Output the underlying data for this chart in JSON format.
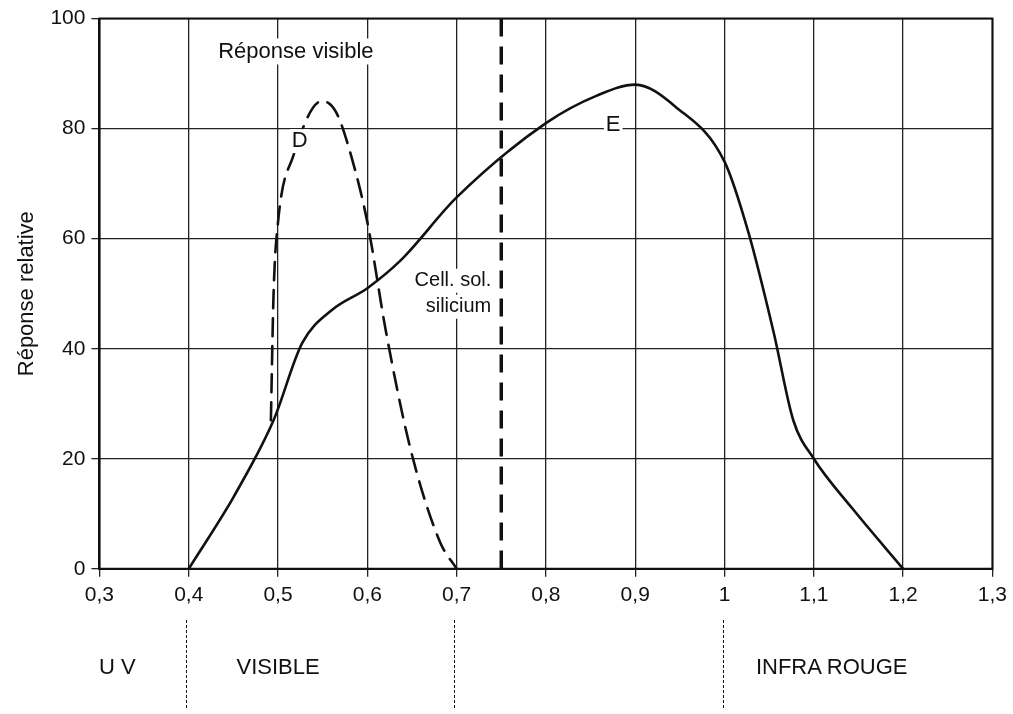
{
  "chart_data": {
    "type": "line",
    "ylabel": "Réponse relative",
    "xlim": [
      0.3,
      1.3
    ],
    "ylim": [
      0,
      100
    ],
    "xticks": [
      {
        "value": 0.3,
        "label": "0,3"
      },
      {
        "value": 0.4,
        "label": "0,4"
      },
      {
        "value": 0.5,
        "label": "0,5"
      },
      {
        "value": 0.6,
        "label": "0,6"
      },
      {
        "value": 0.7,
        "label": "0,7"
      },
      {
        "value": 0.8,
        "label": "0,8"
      },
      {
        "value": 0.9,
        "label": "0,9"
      },
      1,
      {
        "value": 1.1,
        "label": "1,1"
      },
      {
        "value": 1.2,
        "label": "1,2"
      },
      {
        "value": 1.3,
        "label": "1,3"
      }
    ],
    "yticks": [
      0,
      20,
      40,
      60,
      80,
      100
    ],
    "grid": true,
    "legend": false,
    "marker": "none",
    "series": [
      {
        "name": "D",
        "color": "#111111",
        "line_style": "dashed",
        "x": [
          0.492,
          0.495,
          0.5,
          0.517,
          0.549,
          0.565,
          0.582,
          0.6,
          0.621,
          0.648,
          0.681,
          0.7
        ],
        "values": [
          27,
          50,
          63,
          75,
          85,
          83,
          75,
          63,
          43,
          22,
          5,
          0
        ]
      },
      {
        "name": "E",
        "color": "#111111",
        "line_style": "solid",
        "x": [
          0.4,
          0.45,
          0.495,
          0.527,
          0.56,
          0.6,
          0.637,
          0.7,
          0.8,
          0.857,
          0.9,
          0.945,
          1.0,
          1.027,
          1.055,
          1.077,
          1.1,
          1.143,
          1.2
        ],
        "values": [
          0,
          13,
          27,
          41,
          47,
          51,
          56,
          67.5,
          81,
          86,
          88,
          84,
          74,
          61,
          43,
          27,
          20,
          11,
          0
        ]
      }
    ],
    "ref_lines": [
      {
        "axis": "x",
        "value": 0.75,
        "label": "Cell. sol. silicium",
        "line_style": "dashed",
        "color": "#111111"
      }
    ],
    "annotations": [
      "Réponse visible",
      "U V",
      "VISIBLE",
      "INFRA ROUGE"
    ]
  }
}
